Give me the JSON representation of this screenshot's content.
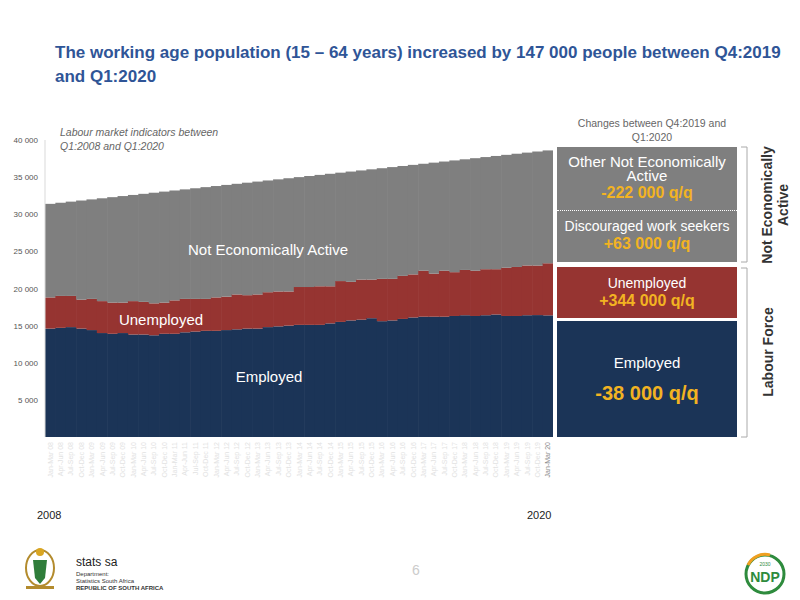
{
  "chart_data": {
    "type": "bar",
    "stacked": true,
    "grid": false,
    "title": "The working age population (15 – 64 years) increased by 147 000 people between Q4:2019 and Q1:2020",
    "subtitle": "Labour market indicators between Q1:2008 and Q1:2020",
    "categories": [
      "Jan-Mar 08",
      "Apr-Jun 08",
      "Jul-Sep 08",
      "Oct-Dec 08",
      "Jan-Mar 09",
      "Apr-Jun 09",
      "Jul-Sep 09",
      "Oct-Dec 09",
      "Jan-Mar 10",
      "Apr-Jun 10",
      "Jul-Sep 10",
      "Oct-Dec 10",
      "Jan-Mar 11",
      "Apr-Jun 11",
      "Jul-Sep 11",
      "Oct-Dec 11",
      "Jan-Mar 12",
      "Apr-Jun 12",
      "Jul-Sep 12",
      "Oct-Dec 12",
      "Jan-Mar 13",
      "Apr-Jun 13",
      "Jul-Sep 13",
      "Oct-Dec 13",
      "Jan-Mar 14",
      "Apr-Jun 14",
      "Jul-Sep 14",
      "Oct-Dec 14",
      "Jan-Mar 15",
      "Apr-Jun 15",
      "Jul-Sep 15",
      "Oct-Dec 15",
      "Jan-Mar 16",
      "Apr-Jun 16",
      "Jul-Sep 16",
      "Oct-Dec 16",
      "Jan-Mar 17",
      "Apr-Jun 17",
      "Jul-Sep 17",
      "Oct-Dec 17",
      "Jan-Mar 18",
      "Apr-Jun 18",
      "Jul-Sep 18",
      "Oct-Dec 18",
      "Jan-Mar 19",
      "Apr-Jun 19",
      "Jul-Sep 19",
      "Oct-Dec 19",
      "Jan-Mar 20"
    ],
    "series": [
      {
        "name": "Employed",
        "color": "#1b3457",
        "values": [
          14600,
          14700,
          14800,
          14600,
          14400,
          14000,
          13900,
          14000,
          13800,
          13800,
          13700,
          13900,
          13900,
          14100,
          14200,
          14300,
          14300,
          14400,
          14500,
          14600,
          14600,
          14800,
          14900,
          15000,
          15100,
          15100,
          15100,
          15300,
          15500,
          15700,
          15800,
          16000,
          15600,
          15700,
          15900,
          16100,
          16200,
          16200,
          16200,
          16300,
          16400,
          16300,
          16400,
          16500,
          16300,
          16300,
          16400,
          16420,
          16383
        ]
      },
      {
        "name": "Unemployed",
        "color": "#963431",
        "values": [
          4200,
          4300,
          4200,
          3900,
          4200,
          4300,
          4200,
          4100,
          4500,
          4400,
          4300,
          4200,
          4500,
          4500,
          4400,
          4300,
          4500,
          4500,
          4700,
          4500,
          4600,
          4700,
          4700,
          4600,
          5100,
          5100,
          5200,
          5000,
          5500,
          5200,
          5400,
          5200,
          5700,
          5600,
          5800,
          5800,
          6200,
          5800,
          6200,
          5900,
          6100,
          6100,
          6200,
          6100,
          6500,
          6600,
          6700,
          6673,
          7017
        ]
      },
      {
        "name": "Not Economically Active",
        "color": "#7f7f7f",
        "values": [
          12600,
          12550,
          12700,
          13350,
          13400,
          13850,
          14200,
          14350,
          14300,
          14550,
          14900,
          14950,
          14800,
          14750,
          14900,
          15050,
          15000,
          15050,
          14900,
          15150,
          15200,
          15050,
          15100,
          15250,
          14800,
          14950,
          15000,
          15150,
          14600,
          14850,
          14700,
          14850,
          14900,
          15050,
          14800,
          14750,
          14400,
          14950,
          14700,
          15050,
          14900,
          15150,
          15100,
          15250,
          15200,
          15250,
          15200,
          15357,
          15198
        ]
      }
    ],
    "ylim": [
      0,
      40000
    ],
    "yticks": [
      {
        "value": 5000,
        "label": "5 000"
      },
      {
        "value": 10000,
        "label": "10 000"
      },
      {
        "value": 15000,
        "label": "15 000"
      },
      {
        "value": 20000,
        "label": "20 000"
      },
      {
        "value": 25000,
        "label": "25 000"
      },
      {
        "value": 30000,
        "label": "30 000"
      },
      {
        "value": 35000,
        "label": "35 000"
      },
      {
        "value": 40000,
        "label": "40 000"
      }
    ],
    "x_range_labels": [
      "2008",
      "2020"
    ],
    "changes": {
      "title": "Changes between Q4:2019 and Q1:2020",
      "groups": [
        {
          "label": "Not Economically Active",
          "items": [
            {
              "label": "Other Not Economically Active",
              "change": "-222 000 q/q",
              "color": "#7f7f7f"
            },
            {
              "label": "Discouraged work seekers",
              "change": "+63 000 q/q",
              "color": "#7f7f7f"
            }
          ]
        },
        {
          "label": "Labour Force",
          "items": [
            {
              "label": "Unemployed",
              "change": "+344 000 q/q",
              "color": "#963431"
            },
            {
              "label": "Employed",
              "change": "-38 000 q/q",
              "color": "#1b3457"
            }
          ]
        }
      ]
    }
  },
  "page": {
    "logo_text": "stats sa",
    "department": [
      "Department:",
      "Statistics South Africa",
      "REPUBLIC OF SOUTH AFRICA"
    ],
    "page_number": "6",
    "ndp_logo": [
      "NDP",
      "2030"
    ]
  }
}
